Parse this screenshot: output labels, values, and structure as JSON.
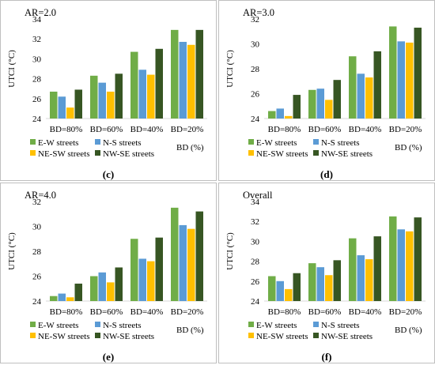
{
  "legend_labels": [
    "E-W streets",
    "N-S streets",
    "NE-SW streets",
    "NW-SE streets"
  ],
  "chart_data": [
    {
      "type": "bar",
      "title": "AR=2.0",
      "panel_label": "(c)",
      "ylabel": "UTCI (°C)",
      "xlabel": "BD (%)",
      "ylim": [
        24,
        34
      ],
      "yticks": [
        "24",
        "26",
        "28",
        "30",
        "32",
        "34"
      ],
      "categories": [
        "BD=80%",
        "BD=60%",
        "BD=40%",
        "BD=20%"
      ],
      "series": [
        {
          "name": "E-W streets",
          "color": "#70ad47",
          "values": [
            26.7,
            28.3,
            30.7,
            32.9
          ]
        },
        {
          "name": "N-S streets",
          "color": "#5b9bd5",
          "values": [
            26.2,
            27.6,
            28.9,
            31.7
          ]
        },
        {
          "name": "NE-SW streets",
          "color": "#ffc000",
          "values": [
            25.1,
            26.7,
            28.4,
            31.4
          ]
        },
        {
          "name": "NW-SE streets",
          "color": "#375623",
          "values": [
            26.9,
            28.5,
            31.0,
            32.9
          ]
        }
      ]
    },
    {
      "type": "bar",
      "title": "AR=3.0",
      "panel_label": "(d)",
      "ylabel": "UTCI (°C)",
      "xlabel": "BD (%)",
      "ylim": [
        24,
        32
      ],
      "yticks": [
        "24",
        "26",
        "28",
        "30",
        "32"
      ],
      "categories": [
        "BD=80%",
        "BD=60%",
        "BD=40%",
        "BD=20%"
      ],
      "series": [
        {
          "name": "E-W streets",
          "color": "#70ad47",
          "values": [
            24.6,
            26.3,
            29.0,
            31.4
          ]
        },
        {
          "name": "N-S streets",
          "color": "#5b9bd5",
          "values": [
            24.8,
            26.4,
            27.6,
            30.2
          ]
        },
        {
          "name": "NE-SW streets",
          "color": "#ffc000",
          "values": [
            24.2,
            25.5,
            27.3,
            30.1
          ]
        },
        {
          "name": "NW-SE streets",
          "color": "#375623",
          "values": [
            25.9,
            27.1,
            29.4,
            31.3
          ]
        }
      ]
    },
    {
      "type": "bar",
      "title": "AR=4.0",
      "panel_label": "(e)",
      "ylabel": "UTCI (°C)",
      "xlabel": "BD (%)",
      "ylim": [
        24,
        32
      ],
      "yticks": [
        "24",
        "26",
        "28",
        "30",
        "32"
      ],
      "categories": [
        "BD=80%",
        "BD=60%",
        "BD=40%",
        "BD=20%"
      ],
      "series": [
        {
          "name": "E-W streets",
          "color": "#70ad47",
          "values": [
            24.4,
            26.0,
            29.0,
            31.5
          ]
        },
        {
          "name": "N-S streets",
          "color": "#5b9bd5",
          "values": [
            24.6,
            26.3,
            27.4,
            30.1
          ]
        },
        {
          "name": "NE-SW streets",
          "color": "#ffc000",
          "values": [
            24.3,
            25.5,
            27.2,
            29.8
          ]
        },
        {
          "name": "NW-SE streets",
          "color": "#375623",
          "values": [
            25.4,
            26.7,
            29.1,
            31.2
          ]
        }
      ]
    },
    {
      "type": "bar",
      "title": "Overall",
      "panel_label": "(f)",
      "ylabel": "UTCI (°C)",
      "xlabel": "BD (%)",
      "ylim": [
        24,
        34
      ],
      "yticks": [
        "24",
        "26",
        "28",
        "30",
        "32",
        "34"
      ],
      "categories": [
        "BD=80%",
        "BD=60%",
        "BD=40%",
        "BD=20%"
      ],
      "series": [
        {
          "name": "E-W streets",
          "color": "#70ad47",
          "values": [
            26.5,
            27.8,
            30.3,
            32.5
          ]
        },
        {
          "name": "N-S streets",
          "color": "#5b9bd5",
          "values": [
            26.0,
            27.4,
            28.6,
            31.2
          ]
        },
        {
          "name": "NE-SW streets",
          "color": "#ffc000",
          "values": [
            25.2,
            26.6,
            28.2,
            31.0
          ]
        },
        {
          "name": "NW-SE streets",
          "color": "#375623",
          "values": [
            26.8,
            28.1,
            30.5,
            32.4
          ]
        }
      ]
    }
  ]
}
